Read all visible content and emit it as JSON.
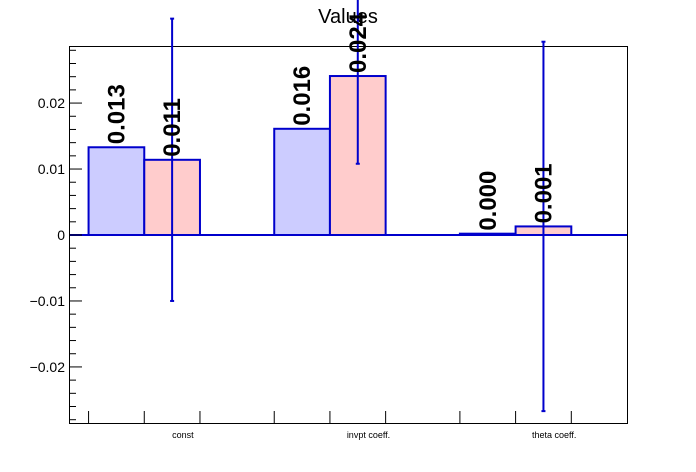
{
  "chart_data": {
    "type": "bar",
    "title": "Values",
    "xlabel": "",
    "ylabel": "",
    "categories": [
      "const",
      "invpt coeff.",
      "theta coeff."
    ],
    "ylim": [
      -0.0285,
      0.0285
    ],
    "yticks": [
      -0.02,
      -0.01,
      0,
      0.01,
      0.02
    ],
    "ytick_labels": [
      "−0.02",
      "−0.01",
      "0",
      "0.01",
      "0.02"
    ],
    "grid": false,
    "series": [
      {
        "fill": "#ccccff",
        "stroke": "#0000cc",
        "values": [
          0.0133,
          0.0161,
          0.0002
        ],
        "labels": [
          "0.013",
          "0.016",
          "0.000"
        ],
        "errors": [
          null,
          null,
          null
        ]
      },
      {
        "fill": "#ffcccc",
        "stroke": "#0000cc",
        "values": [
          0.0114,
          0.0241,
          0.0013
        ],
        "labels": [
          "0.011",
          "0.024",
          "0.001"
        ],
        "errors": [
          0.0214,
          0.0133,
          0.028
        ]
      }
    ],
    "colors": {
      "axis": "#000000",
      "bar_outline": "#0000cc",
      "error_bar": "#0000cc",
      "series1": "#ccccff",
      "series2": "#ffcccc"
    }
  }
}
